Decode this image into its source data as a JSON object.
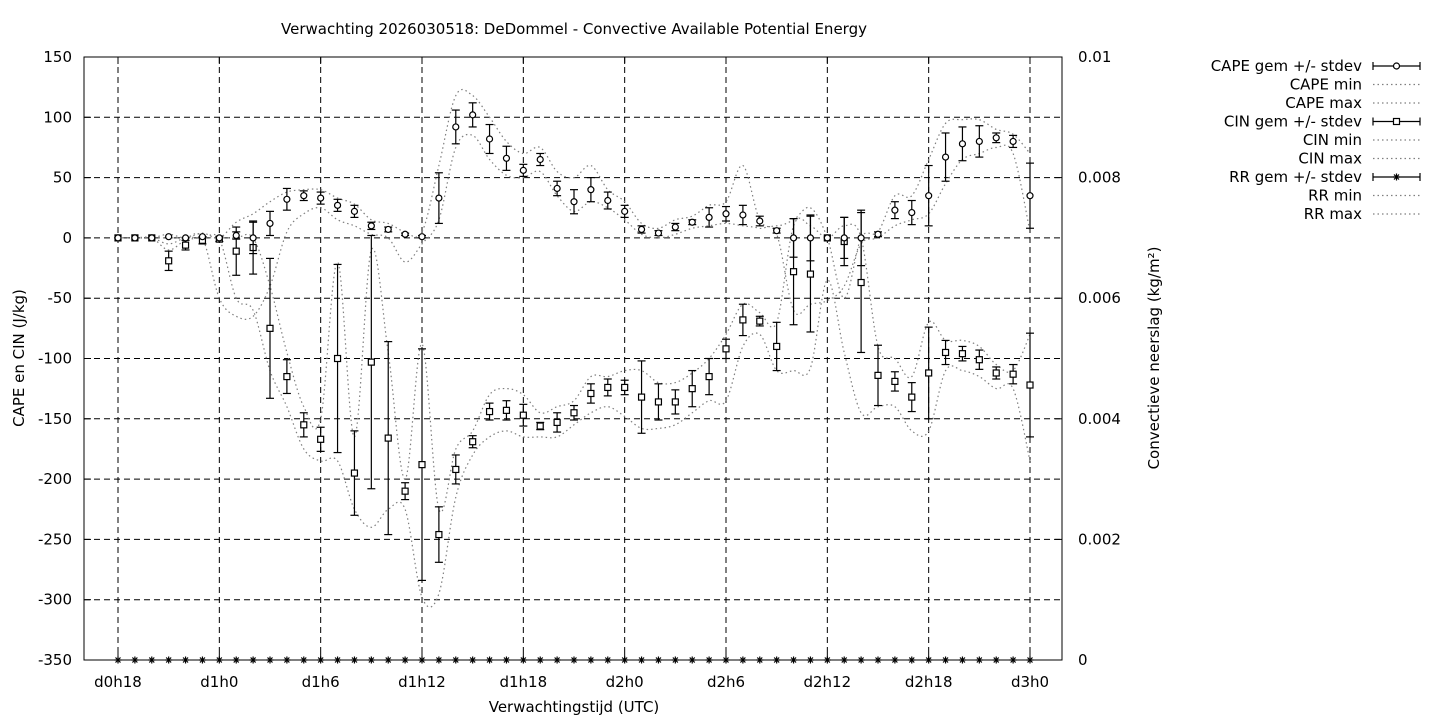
{
  "chart_data": {
    "type": "line",
    "title": "Verwachting 2026030518: DeDommel - Convective Available Potential Energy",
    "xlabel": "Verwachtingstijd (UTC)",
    "ylabel": "CAPE en CIN (J/kg)",
    "y2label": "Convectieve neerslag (kg/m²)",
    "xlim": [
      18,
      75
    ],
    "ylim": [
      -350,
      150
    ],
    "y2lim": [
      0,
      0.01
    ],
    "grid": true,
    "legend_position": "outside-right",
    "x_ticks": [
      {
        "value": 18,
        "label": "d0h18"
      },
      {
        "value": 24,
        "label": "d1h0"
      },
      {
        "value": 30,
        "label": "d1h6"
      },
      {
        "value": 36,
        "label": "d1h12"
      },
      {
        "value": 42,
        "label": "d1h18"
      },
      {
        "value": 48,
        "label": "d2h0"
      },
      {
        "value": 54,
        "label": "d2h6"
      },
      {
        "value": 60,
        "label": "d2h12"
      },
      {
        "value": 66,
        "label": "d2h18"
      },
      {
        "value": 72,
        "label": "d3h0"
      }
    ],
    "y_ticks": [
      150,
      100,
      50,
      0,
      -50,
      -100,
      -150,
      -200,
      -250,
      -300,
      -350
    ],
    "y2_ticks": [
      {
        "value": 0.01,
        "label": "0.01"
      },
      {
        "value": 0.008,
        "label": "0.008"
      },
      {
        "value": 0.006,
        "label": "0.006"
      },
      {
        "value": 0.004,
        "label": "0.004"
      },
      {
        "value": 0.002,
        "label": "0.002"
      },
      {
        "value": 0,
        "label": "0"
      }
    ],
    "legend": [
      {
        "name": "CAPE gem +/- stdev",
        "style": "errorbar",
        "marker": "circle"
      },
      {
        "name": "CAPE min",
        "style": "dotted"
      },
      {
        "name": "CAPE max",
        "style": "dotted"
      },
      {
        "name": "CIN gem +/- stdev",
        "style": "errorbar",
        "marker": "square"
      },
      {
        "name": "CIN min",
        "style": "dotted-coarse"
      },
      {
        "name": "CIN max",
        "style": "dotted"
      },
      {
        "name": "RR gem +/- stdev",
        "style": "errorbar",
        "marker": "star"
      },
      {
        "name": "RR min",
        "style": "dotted"
      },
      {
        "name": "RR max",
        "style": "dotted"
      }
    ],
    "x": [
      18,
      19,
      20,
      21,
      22,
      23,
      24,
      25,
      26,
      27,
      28,
      29,
      30,
      31,
      32,
      33,
      34,
      35,
      36,
      37,
      38,
      39,
      40,
      41,
      42,
      43,
      44,
      45,
      46,
      47,
      48,
      49,
      50,
      51,
      52,
      53,
      54,
      55,
      56,
      57,
      58,
      59,
      60,
      61,
      62,
      63,
      64,
      65,
      66,
      67,
      68,
      69,
      70,
      71,
      72
    ],
    "series": [
      {
        "name": "CAPE gem +/- stdev",
        "mean": [
          0,
          0,
          0,
          1,
          0,
          1,
          0,
          2,
          0,
          12,
          32,
          35,
          33,
          27,
          22,
          10,
          7,
          3,
          1,
          33,
          92,
          102,
          82,
          66,
          56,
          65,
          41,
          30,
          40,
          31,
          22,
          7,
          4,
          9,
          13,
          17,
          20,
          19,
          14,
          6,
          0,
          0,
          0,
          0,
          0,
          3,
          23,
          21,
          35,
          67,
          78,
          80,
          83,
          80,
          35
        ],
        "stdev": [
          0,
          0,
          0,
          0,
          0,
          0,
          0,
          3,
          13,
          10,
          9,
          4,
          5,
          5,
          5,
          3,
          2,
          1,
          1,
          21,
          14,
          10,
          12,
          10,
          5,
          5,
          6,
          10,
          10,
          7,
          5,
          3,
          2,
          3,
          2,
          8,
          6,
          8,
          4,
          2,
          16,
          19,
          0,
          17,
          23,
          2,
          7,
          10,
          25,
          20,
          14,
          13,
          4,
          5,
          27
        ]
      },
      {
        "name": "CAPE min",
        "values": [
          0,
          0,
          0,
          0,
          0,
          0,
          -50,
          -65,
          -65,
          -40,
          5,
          20,
          25,
          15,
          10,
          3,
          0,
          -20,
          -5,
          15,
          75,
          85,
          65,
          52,
          50,
          55,
          35,
          22,
          30,
          25,
          15,
          3,
          0,
          3,
          8,
          10,
          12,
          10,
          8,
          3,
          -60,
          -55,
          -52,
          -40,
          -5,
          0,
          10,
          15,
          20,
          45,
          65,
          70,
          75,
          70,
          5
        ]
      },
      {
        "name": "CAPE max",
        "values": [
          0,
          0,
          0,
          3,
          0,
          4,
          0,
          13,
          20,
          30,
          38,
          40,
          40,
          33,
          28,
          15,
          12,
          5,
          5,
          60,
          118,
          118,
          100,
          80,
          70,
          75,
          55,
          50,
          60,
          40,
          30,
          12,
          8,
          15,
          18,
          27,
          30,
          60,
          15,
          10,
          15,
          25,
          0,
          -50,
          0,
          5,
          35,
          35,
          65,
          95,
          98,
          98,
          90,
          86,
          70
        ]
      },
      {
        "name": "CIN gem +/- stdev",
        "mean": [
          0,
          0,
          0,
          -19,
          -6,
          -2,
          -1,
          -11,
          -8,
          -75,
          -115,
          -155,
          -167,
          -100,
          -195,
          -103,
          -166,
          -210,
          -188,
          -246,
          -192,
          -169,
          -144,
          -143,
          -147,
          -156,
          -153,
          -145,
          -129,
          -124,
          -124,
          -132,
          -136,
          -136,
          -125,
          -115,
          -92,
          -68,
          -69,
          -90,
          -28,
          -30,
          0,
          -3,
          -37,
          -114,
          -119,
          -132,
          -112,
          -95,
          -96,
          -101,
          -112,
          -113,
          -122
        ],
        "stdev": [
          0,
          0,
          0,
          8,
          4,
          3,
          2,
          20,
          22,
          58,
          14,
          10,
          10,
          78,
          35,
          105,
          80,
          7,
          96,
          23,
          12,
          5,
          7,
          8,
          9,
          3,
          8,
          6,
          8,
          7,
          6,
          30,
          15,
          10,
          15,
          15,
          8,
          13,
          4,
          20,
          44,
          48,
          0,
          20,
          58,
          25,
          8,
          12,
          38,
          10,
          6,
          8,
          5,
          8,
          43
        ]
      },
      {
        "name": "CIN min",
        "values": [
          0,
          0,
          0,
          -5,
          0,
          0,
          -1,
          -50,
          -60,
          -110,
          -140,
          -175,
          -185,
          -185,
          -225,
          -240,
          -225,
          -225,
          -298,
          -295,
          -215,
          -180,
          -165,
          -160,
          -165,
          -165,
          -165,
          -155,
          -145,
          -140,
          -148,
          -158,
          -158,
          -155,
          -145,
          -135,
          -135,
          -90,
          -80,
          -110,
          -110,
          -108,
          -35,
          -95,
          -145,
          -140,
          -140,
          -160,
          -160,
          -110,
          -110,
          -115,
          -125,
          -125,
          -185
        ]
      },
      {
        "name": "CIN max",
        "values": [
          0,
          0,
          0,
          -10,
          -2,
          0,
          0,
          0,
          0,
          -40,
          -95,
          -140,
          -150,
          -20,
          -165,
          -10,
          -95,
          -200,
          -88,
          -225,
          -175,
          -160,
          -130,
          -125,
          -130,
          -145,
          -140,
          -135,
          -115,
          -115,
          -110,
          -110,
          -120,
          -120,
          -112,
          -100,
          -80,
          -55,
          -62,
          -70,
          10,
          10,
          0,
          10,
          0,
          -90,
          -100,
          -115,
          -70,
          -85,
          -85,
          -90,
          -105,
          -110,
          -80
        ]
      },
      {
        "name": "RR gem +/- stdev",
        "values": [
          0,
          0,
          0,
          0,
          0,
          0,
          0,
          0,
          0,
          0,
          0,
          0,
          0,
          0,
          0,
          0,
          0,
          0,
          0,
          0,
          0,
          0,
          0,
          0,
          0,
          0,
          0,
          0,
          0,
          0,
          0,
          0,
          0,
          0,
          0,
          0,
          0,
          0,
          0,
          0,
          0,
          0,
          0,
          0,
          0,
          0,
          0,
          0,
          0,
          0,
          0,
          0,
          0,
          0,
          0
        ]
      }
    ]
  }
}
